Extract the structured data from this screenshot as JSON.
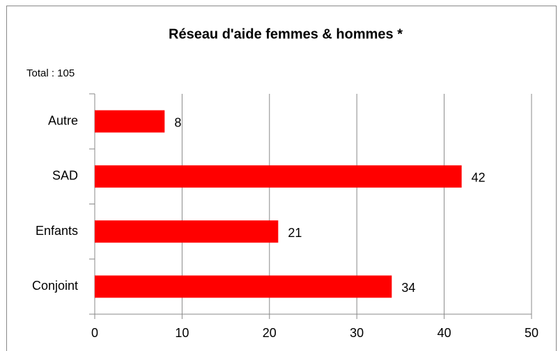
{
  "chart_data": {
    "type": "bar",
    "orientation": "horizontal",
    "title": "Réseau d'aide femmes & hommes *",
    "annotation": "Total : 105",
    "categories": [
      "Conjoint",
      "Enfants",
      "SAD",
      "Autre"
    ],
    "values": [
      34,
      21,
      42,
      8
    ],
    "color": "#ff0000",
    "xlim": [
      0,
      50
    ],
    "xticks": [
      0,
      10,
      20,
      30,
      40,
      50
    ],
    "grid": true
  }
}
